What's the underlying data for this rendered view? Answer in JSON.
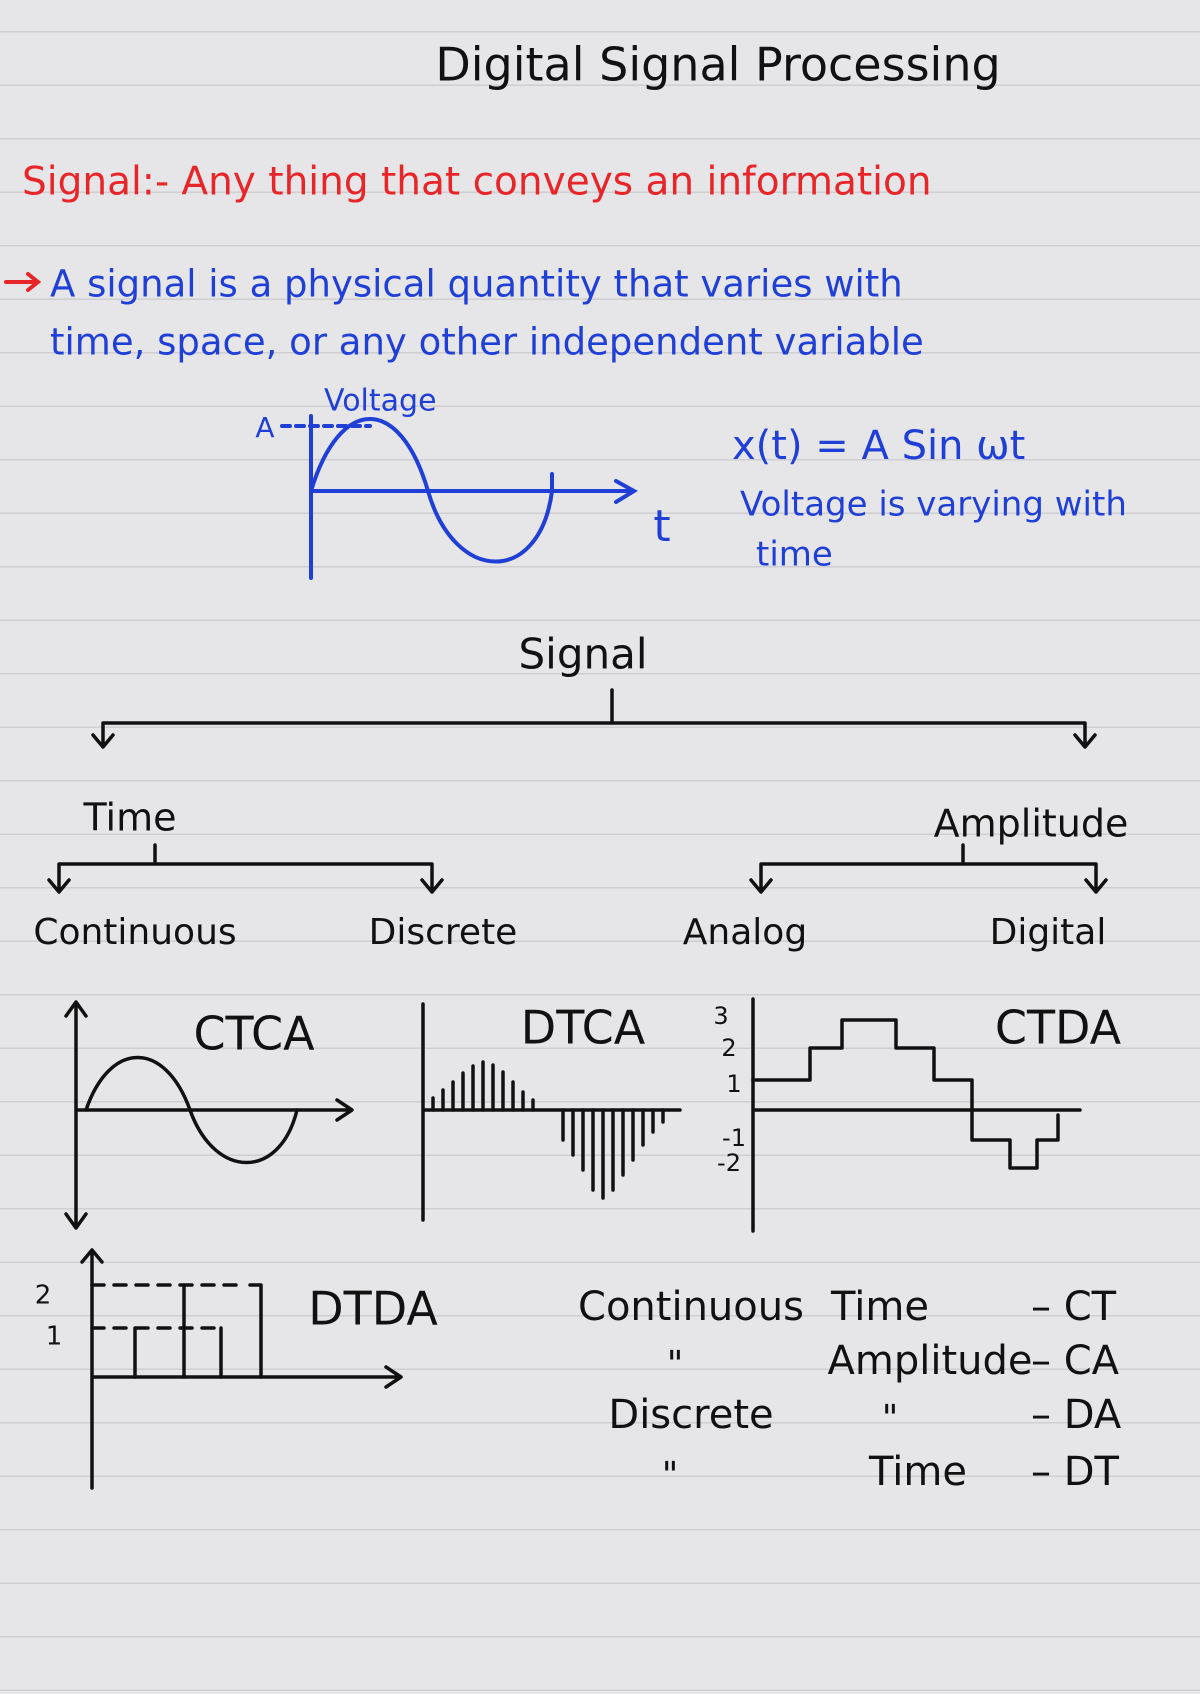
{
  "title": "Digital Signal Processing",
  "definition": "Signal:- Any thing that conveys an information",
  "note": {
    "lines": [
      "A signal is a physical quantity that varies with",
      "time, space, or any other independent variable"
    ]
  },
  "sketch": {
    "amplitude_label": "A",
    "y_label": "Voltage",
    "x_label": "t"
  },
  "formula": {
    "equation": "x(t) = A Sin ωt",
    "lines": [
      "Voltage is varying with",
      "time"
    ]
  },
  "tree": {
    "root": "Signal",
    "branches": [
      {
        "label": "Time",
        "children": [
          "Continuous",
          "Discrete"
        ]
      },
      {
        "label": "Amplitude",
        "children": [
          "Analog",
          "Digital"
        ]
      }
    ]
  },
  "graphs": [
    {
      "label": "CTCA"
    },
    {
      "label": "DTCA"
    },
    {
      "label": "CTDA",
      "ticks": [
        "3",
        "2",
        "1",
        "-1",
        "-2"
      ]
    },
    {
      "label": "DTDA",
      "ticks": [
        "2",
        "1"
      ]
    }
  ],
  "table": {
    "rows": [
      [
        "Continuous",
        "Time",
        "– CT"
      ],
      [
        "\"",
        "Amplitude",
        "– CA"
      ],
      [
        "Discrete",
        "\"",
        "– DA"
      ],
      [
        "\"",
        "Time",
        "– DT"
      ]
    ]
  }
}
